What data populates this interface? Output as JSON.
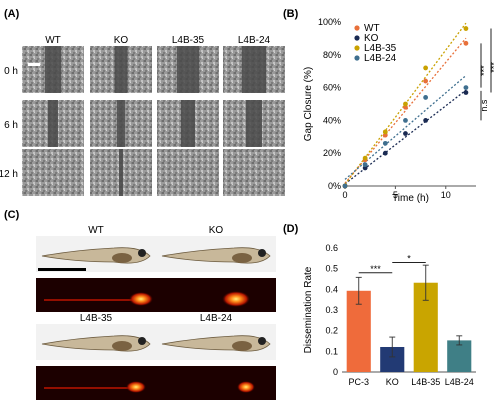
{
  "panels": {
    "a": {
      "label": "(A)",
      "columns": [
        "WT",
        "KO",
        "L4B-35",
        "L4B-24"
      ],
      "rows": [
        "0 h",
        "6 h",
        "12 h"
      ]
    },
    "b": {
      "label": "(B)",
      "sig_labels": [
        "***",
        "***",
        "n.s"
      ]
    },
    "c": {
      "label": "(C)",
      "fish": [
        "WT",
        "KO",
        "L4B-35",
        "L4B-24"
      ]
    },
    "d": {
      "label": "(D)",
      "sig_labels": [
        "***",
        "*"
      ]
    }
  },
  "chart_data": [
    {
      "type": "scatter",
      "xlabel": "Time (h)",
      "ylabel": "Gap Closure (%)",
      "xlim": [
        0,
        13
      ],
      "ylim": [
        0,
        100
      ],
      "xticks": [
        "0",
        "5",
        "10"
      ],
      "yticks": [
        "0%",
        "20%",
        "40%",
        "60%",
        "80%",
        "100%"
      ],
      "grid": false,
      "legend": "top-left",
      "x": [
        0,
        2,
        4,
        6,
        8,
        12
      ],
      "series": [
        {
          "name": "WT",
          "color": "#e8703a",
          "values": [
            0,
            16,
            31,
            48,
            64,
            87
          ]
        },
        {
          "name": "KO",
          "color": "#1a2a52",
          "values": [
            0,
            11,
            20,
            32,
            40,
            57
          ]
        },
        {
          "name": "L4B-35",
          "color": "#c9a100",
          "values": [
            0,
            17,
            33,
            50,
            72,
            96
          ]
        },
        {
          "name": "L4B-24",
          "color": "#3f6f8f",
          "values": [
            0,
            13,
            26,
            40,
            54,
            60
          ]
        }
      ]
    },
    {
      "type": "bar",
      "ylabel": "Dissemination Rate",
      "ylim": [
        0,
        0.6
      ],
      "yticks": [
        "0",
        "0.1",
        "0.2",
        "0.3",
        "0.4",
        "0.5",
        "0.6"
      ],
      "categories": [
        "PC-3",
        "KO",
        "L4B-35",
        "L4B-24"
      ],
      "values": [
        0.393,
        0.121,
        0.432,
        0.153
      ],
      "errors": [
        0.065,
        0.048,
        0.085,
        0.022
      ],
      "colors": [
        "#ef6b3b",
        "#223a74",
        "#c9a500",
        "#3f7f86"
      ]
    }
  ]
}
